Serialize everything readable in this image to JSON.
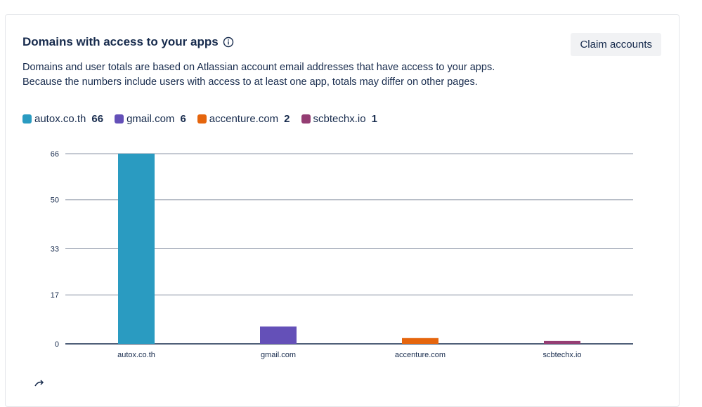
{
  "card": {
    "title": "Domains with access to your apps",
    "claim_button": "Claim accounts",
    "description_line1": "Domains and user totals are based on Atlassian account email addresses that have access to your apps.",
    "description_line2": "Because the numbers include users with access to at least one app, totals may differ on other pages."
  },
  "legend": [
    {
      "name": "autox.co.th",
      "value": "66",
      "color": "#2a9bc1"
    },
    {
      "name": "gmail.com",
      "value": "6",
      "color": "#6450b8"
    },
    {
      "name": "accenture.com",
      "value": "2",
      "color": "#e5650d"
    },
    {
      "name": "scbtechx.io",
      "value": "1",
      "color": "#943d73"
    }
  ],
  "chart_data": {
    "type": "bar",
    "categories": [
      "autox.co.th",
      "gmail.com",
      "accenture.com",
      "scbtechx.io"
    ],
    "values": [
      66,
      6,
      2,
      1
    ],
    "colors": [
      "#2a9bc1",
      "#6450b8",
      "#e5650d",
      "#943d73"
    ],
    "yticks": [
      0,
      17,
      33,
      50,
      66
    ],
    "ylim": [
      0,
      66
    ],
    "grid": true,
    "legend_placement": "top-left",
    "title": "",
    "xlabel": "",
    "ylabel": ""
  }
}
